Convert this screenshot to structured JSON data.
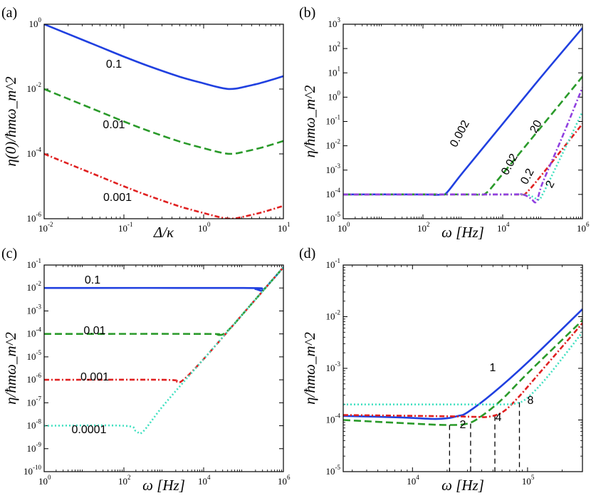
{
  "chart_data": [
    {
      "panel": "(a)",
      "type": "line",
      "xlabel": "Δ/κ",
      "ylabel": "η(0)/ħmω_m^2",
      "xscale": "log",
      "yscale": "log",
      "xlim": [
        0.01,
        10
      ],
      "ylim": [
        1e-06,
        1
      ],
      "xticks": [
        {
          "label": "10",
          "exp": "-2"
        },
        {
          "label": "10",
          "exp": "-1"
        },
        {
          "label": "10",
          "exp": "0"
        },
        {
          "label": "10",
          "exp": "1"
        }
      ],
      "yticks": [
        {
          "label": "10",
          "exp": "-6"
        },
        {
          "label": "10",
          "exp": "-4"
        },
        {
          "label": "10",
          "exp": "-2"
        },
        {
          "label": "10",
          "exp": "0"
        }
      ],
      "series": [
        {
          "name": "0.1",
          "color": "#2040e0",
          "dash": "solid",
          "x": [
            0.01,
            0.02,
            0.05,
            0.1,
            0.2,
            0.5,
            1,
            1.5,
            2,
            2.5,
            3,
            5,
            7,
            10
          ],
          "y": [
            1,
            0.5,
            0.2,
            0.1,
            0.052,
            0.024,
            0.015,
            0.0115,
            0.0101,
            0.0103,
            0.0112,
            0.015,
            0.019,
            0.025
          ]
        },
        {
          "name": "0.01",
          "color": "#2a9a2a",
          "dash": "dashed",
          "x": [
            0.01,
            0.02,
            0.05,
            0.1,
            0.2,
            0.5,
            1,
            1.5,
            2,
            2.5,
            3,
            5,
            7,
            10
          ],
          "y": [
            0.01,
            0.005,
            0.002,
            0.001,
            0.00052,
            0.00024,
            0.00015,
            0.000115,
            0.000101,
            0.000103,
            0.000112,
            0.00015,
            0.00019,
            0.00025
          ]
        },
        {
          "name": "0.001",
          "color": "#e02020",
          "dash": "dashdot",
          "x": [
            0.01,
            0.02,
            0.05,
            0.1,
            0.2,
            0.5,
            1,
            1.5,
            2,
            2.5,
            3,
            5,
            7,
            10
          ],
          "y": [
            0.0001,
            5e-05,
            2e-05,
            1e-05,
            5.2e-06,
            2.4e-06,
            1.5e-06,
            1.15e-06,
            1.01e-06,
            1.03e-06,
            1.12e-06,
            1.5e-06,
            1.9e-06,
            2.5e-06
          ]
        }
      ],
      "annotations": [
        {
          "text": "0.1"
        },
        {
          "text": "0.01"
        },
        {
          "text": "0.001"
        }
      ]
    },
    {
      "panel": "(b)",
      "type": "line",
      "xlabel": "ω [Hz]",
      "ylabel": "η/ħmω_m^2",
      "xscale": "log",
      "yscale": "log",
      "xlim": [
        1,
        1000000
      ],
      "ylim": [
        1e-05,
        1000
      ],
      "xticks": [
        {
          "label": "10",
          "exp": "0"
        },
        {
          "label": "10",
          "exp": "2"
        },
        {
          "label": "10",
          "exp": "4"
        },
        {
          "label": "10",
          "exp": "6"
        }
      ],
      "yticks": [
        {
          "label": "10",
          "exp": "-5"
        },
        {
          "label": "10",
          "exp": "-4"
        },
        {
          "label": "10",
          "exp": "-3"
        },
        {
          "label": "10",
          "exp": "-2"
        },
        {
          "label": "10",
          "exp": "-1"
        },
        {
          "label": "10",
          "exp": "0"
        },
        {
          "label": "10",
          "exp": "1"
        },
        {
          "label": "10",
          "exp": "2"
        },
        {
          "label": "10",
          "exp": "3"
        }
      ],
      "series": [
        {
          "name": "0.002",
          "color": "#2040e0",
          "dash": "solid",
          "x": [
            1,
            100,
            200,
            300,
            400,
            1000,
            10000,
            100000,
            1000000
          ],
          "y": [
            0.0001,
            0.0001,
            9.5e-05,
            0.0001,
            0.00012,
            0.0008,
            0.08,
            8,
            700
          ]
        },
        {
          "name": "0.02",
          "color": "#2a9a2a",
          "dash": "dashed",
          "x": [
            1,
            1000,
            2500,
            4000,
            10000,
            100000,
            1000000
          ],
          "y": [
            0.0001,
            0.0001,
            9.8e-05,
            0.00012,
            0.0007,
            0.07,
            7
          ]
        },
        {
          "name": "0.2",
          "color": "#e02020",
          "dash": "dashdot",
          "x": [
            1,
            10000,
            30000,
            40000,
            100000,
            1000000
          ],
          "y": [
            0.0001,
            0.0001,
            9.8e-05,
            0.00012,
            0.0007,
            0.08
          ]
        },
        {
          "name": "2",
          "color": "#40e0c0",
          "dash": "dotted",
          "x": [
            1,
            10000,
            40000,
            60000,
            80000,
            100000,
            300000,
            1000000
          ],
          "y": [
            0.0001,
            0.0001,
            9.5e-05,
            7.5e-05,
            6e-05,
            0.0001,
            0.004,
            0.25
          ]
        },
        {
          "name": "20",
          "color": "#9040e0",
          "dash": "dashdot",
          "x": [
            1,
            10000,
            30000,
            50000,
            70000,
            100000,
            300000,
            1000000
          ],
          "y": [
            0.0001,
            0.0001,
            0.0001,
            7e-05,
            5e-05,
            0.0003,
            0.02,
            2.5
          ]
        }
      ],
      "annotations": [
        {
          "text": "0.002"
        },
        {
          "text": "0.02"
        },
        {
          "text": "0.2"
        },
        {
          "text": "2"
        },
        {
          "text": "20"
        }
      ]
    },
    {
      "panel": "(c)",
      "type": "line",
      "xlabel": "ω [Hz]",
      "ylabel": "η/ħmω_m^2",
      "xscale": "log",
      "yscale": "log",
      "xlim": [
        1,
        1000000
      ],
      "ylim": [
        1e-10,
        0.1
      ],
      "xticks": [
        {
          "label": "10",
          "exp": "0"
        },
        {
          "label": "10",
          "exp": "2"
        },
        {
          "label": "10",
          "exp": "4"
        },
        {
          "label": "10",
          "exp": "6"
        }
      ],
      "yticks": [
        {
          "label": "10",
          "exp": "-10"
        },
        {
          "label": "10",
          "exp": "-9"
        },
        {
          "label": "10",
          "exp": "-8"
        },
        {
          "label": "10",
          "exp": "-7"
        },
        {
          "label": "10",
          "exp": "-6"
        },
        {
          "label": "10",
          "exp": "-5"
        },
        {
          "label": "10",
          "exp": "-4"
        },
        {
          "label": "10",
          "exp": "-3"
        },
        {
          "label": "10",
          "exp": "-2"
        },
        {
          "label": "10",
          "exp": "-1"
        }
      ],
      "series": [
        {
          "name": "0.1",
          "color": "#2040e0",
          "dash": "solid",
          "x": [
            1,
            100000,
            200000,
            300000,
            500000,
            1000000
          ],
          "y": [
            0.01,
            0.01,
            0.009,
            0.008,
            0.02,
            0.08
          ]
        },
        {
          "name": "0.01",
          "color": "#2a9a2a",
          "dash": "dashed",
          "x": [
            1,
            10000,
            20000,
            30000,
            50000,
            100000,
            1000000
          ],
          "y": [
            0.0001,
            0.0001,
            9.3e-05,
            9.5e-05,
            0.0002,
            0.0008,
            0.08
          ]
        },
        {
          "name": "0.001",
          "color": "#e02020",
          "dash": "dashdot",
          "x": [
            1,
            1000,
            2000,
            3000,
            10000,
            100000,
            1000000
          ],
          "y": [
            1e-06,
            1e-06,
            8.5e-07,
            9.5e-07,
            8e-06,
            0.0008,
            0.08
          ]
        },
        {
          "name": "0.0001",
          "color": "#40e0c0",
          "dash": "dotted",
          "x": [
            1,
            100,
            200,
            300,
            1000,
            10000,
            100000,
            1000000
          ],
          "y": [
            1e-08,
            1e-08,
            6e-09,
            5.5e-09,
            8e-08,
            8e-06,
            0.0008,
            0.08
          ]
        }
      ],
      "annotations": [
        {
          "text": "0.1"
        },
        {
          "text": "0.01"
        },
        {
          "text": "0.001"
        },
        {
          "text": "0.0001"
        }
      ]
    },
    {
      "panel": "(d)",
      "type": "line",
      "xlabel": "ω [Hz]",
      "ylabel": "η/ħmω_m^2",
      "xscale": "log",
      "yscale": "log",
      "xlim": [
        2500,
        300000
      ],
      "ylim": [
        1e-05,
        0.1
      ],
      "xticks": [
        {
          "label": "10",
          "exp": "4"
        },
        {
          "label": "10",
          "exp": "5"
        }
      ],
      "yticks": [
        {
          "label": "10",
          "exp": "-5"
        },
        {
          "label": "10",
          "exp": "-4"
        },
        {
          "label": "10",
          "exp": "-3"
        },
        {
          "label": "10",
          "exp": "-2"
        },
        {
          "label": "10",
          "exp": "-1"
        }
      ],
      "series": [
        {
          "name": "1",
          "color": "#2040e0",
          "dash": "solid",
          "x": [
            2500,
            8000,
            15000,
            20000,
            25000,
            30000,
            50000,
            100000,
            300000
          ],
          "y": [
            0.00012,
            0.000112,
            0.000105,
            0.000108,
            0.00012,
            0.00014,
            0.00033,
            0.0013,
            0.014
          ]
        },
        {
          "name": "2",
          "color": "#2a9a2a",
          "dash": "dashed",
          "x": [
            2500,
            10000,
            20000,
            30000,
            40000,
            60000,
            100000,
            300000
          ],
          "y": [
            0.0001,
            8.5e-05,
            8e-05,
            8.5e-05,
            0.00012,
            0.00025,
            0.0008,
            0.0085
          ]
        },
        {
          "name": "4",
          "color": "#e02020",
          "dash": "dashdot",
          "x": [
            2500,
            20000,
            35000,
            45000,
            60000,
            80000,
            120000,
            300000
          ],
          "y": [
            0.000125,
            0.000118,
            0.000115,
            0.000115,
            0.00014,
            0.00025,
            0.0007,
            0.0075
          ]
        },
        {
          "name": "8",
          "color": "#40e0c0",
          "dash": "dotted",
          "x": [
            2500,
            40000,
            60000,
            80000,
            100000,
            150000,
            300000
          ],
          "y": [
            0.0002,
            0.0002,
            0.0002,
            0.00021,
            0.00027,
            0.0007,
            0.005
          ]
        }
      ],
      "markers": [
        {
          "label": "2",
          "x": 21000,
          "y": 8e-05
        },
        {
          "label": "",
          "x": 32000,
          "y": 8.5e-05
        },
        {
          "label": "4",
          "x": 52000,
          "y": 0.00012
        },
        {
          "label": "8",
          "x": 85000,
          "y": 0.00022
        }
      ],
      "annotations": [
        {
          "text": "1"
        },
        {
          "text": "2"
        },
        {
          "text": "4"
        },
        {
          "text": "8"
        }
      ]
    }
  ]
}
